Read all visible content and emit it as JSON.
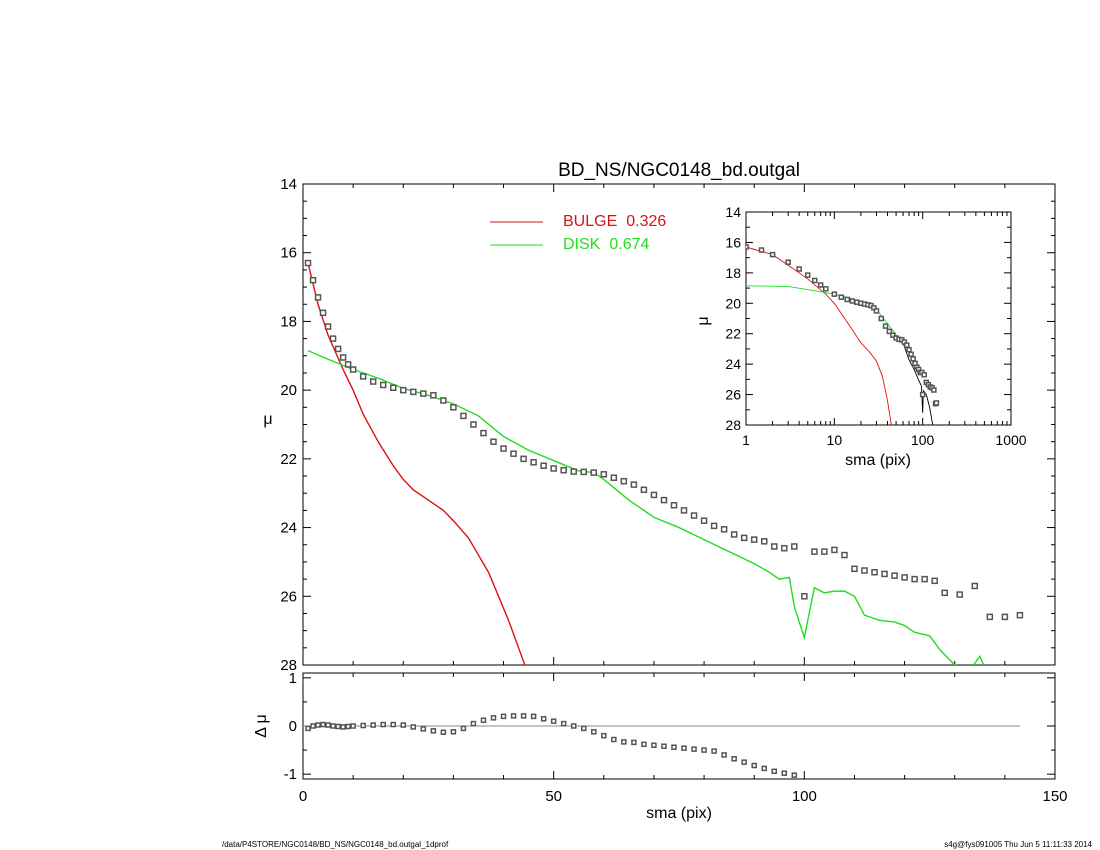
{
  "title": "BD_NS/NGC0148_bd.outgal",
  "footer": {
    "left": "/data/P4STORE/NGC0148/BD_NS/NGC0148_bd.outgal_1dprof",
    "right": "s4g@fys091005  Thu Jun  5 11:11:33 2014"
  },
  "colors": {
    "bulge": "#dd1111",
    "disk": "#11dd11",
    "data": "#555555",
    "axis": "#000000",
    "zero": "#888888"
  },
  "legend": [
    {
      "label": "BULGE",
      "value": "0.326",
      "color": "#dd1111"
    },
    {
      "label": "DISK",
      "value": "0.674",
      "color": "#22dd22"
    }
  ],
  "chart_data": [
    {
      "id": "main",
      "type": "line",
      "xlabel": "sma (pix)",
      "ylabel": "μ",
      "xlim": [
        0,
        150
      ],
      "ylim": [
        28,
        14
      ],
      "y_reversed": true,
      "xticks": [
        "0",
        "50",
        "100",
        "150"
      ],
      "yticks": [
        "14",
        "16",
        "18",
        "20",
        "22",
        "24",
        "26",
        "28"
      ],
      "series": [
        {
          "name": "BULGE",
          "style": "line",
          "color": "#dd1111",
          "x": [
            1,
            3,
            5,
            8,
            10,
            12,
            15,
            18,
            20,
            22,
            25,
            28,
            30,
            33,
            35,
            37,
            39,
            41,
            43,
            45
          ],
          "y": [
            16.3,
            17.5,
            18.4,
            19.4,
            20.0,
            20.7,
            21.5,
            22.2,
            22.6,
            22.9,
            23.2,
            23.5,
            23.8,
            24.3,
            24.8,
            25.3,
            26.0,
            26.7,
            27.5,
            28.3
          ]
        },
        {
          "name": "DISK",
          "style": "line",
          "color": "#22dd22",
          "x": [
            1,
            5,
            10,
            15,
            20,
            25,
            30,
            35,
            40,
            45,
            50,
            55,
            58,
            60,
            65,
            70,
            75,
            80,
            85,
            90,
            93,
            95,
            97,
            98,
            100,
            102,
            104,
            106,
            108,
            110,
            112,
            115,
            118,
            120,
            122,
            125,
            127,
            130,
            133,
            135,
            137,
            140,
            143
          ],
          "y": [
            18.85,
            19.1,
            19.4,
            19.65,
            19.95,
            20.15,
            20.4,
            20.75,
            21.35,
            21.75,
            22.05,
            22.35,
            22.4,
            22.6,
            23.2,
            23.7,
            24.0,
            24.35,
            24.7,
            25.05,
            25.3,
            25.5,
            25.45,
            26.3,
            27.2,
            25.75,
            25.9,
            25.85,
            25.85,
            26.0,
            26.55,
            26.7,
            26.75,
            26.85,
            27.05,
            27.15,
            27.55,
            28.0,
            28.15,
            27.75,
            28.4,
            28.6,
            28.8
          ]
        },
        {
          "name": "",
          "style": "markers",
          "color": "#555555",
          "x": [
            1,
            2,
            3,
            4,
            5,
            6,
            7,
            8,
            9,
            10,
            12,
            14,
            16,
            18,
            20,
            22,
            24,
            26,
            28,
            30,
            32,
            34,
            36,
            38,
            40,
            42,
            44,
            46,
            48,
            50,
            52,
            54,
            56,
            58,
            60,
            62,
            64,
            66,
            68,
            70,
            72,
            74,
            76,
            78,
            80,
            82,
            84,
            86,
            88,
            90,
            92,
            94,
            96,
            98,
            100,
            102,
            104,
            106,
            108,
            110,
            112,
            114,
            116,
            118,
            120,
            122,
            124,
            126,
            128,
            131,
            134,
            137,
            140,
            143
          ],
          "y": [
            16.3,
            16.8,
            17.3,
            17.75,
            18.15,
            18.5,
            18.8,
            19.05,
            19.25,
            19.4,
            19.6,
            19.75,
            19.85,
            19.93,
            20.0,
            20.05,
            20.1,
            20.15,
            20.3,
            20.5,
            20.75,
            21.0,
            21.25,
            21.5,
            21.7,
            21.85,
            22.0,
            22.1,
            22.2,
            22.28,
            22.33,
            22.37,
            22.38,
            22.4,
            22.45,
            22.55,
            22.65,
            22.75,
            22.9,
            23.05,
            23.2,
            23.35,
            23.5,
            23.65,
            23.8,
            23.95,
            24.05,
            24.2,
            24.3,
            24.35,
            24.4,
            24.55,
            24.6,
            24.55,
            26.0,
            24.7,
            24.7,
            24.65,
            24.8,
            25.2,
            25.25,
            25.3,
            25.35,
            25.4,
            25.45,
            25.5,
            25.5,
            25.55,
            25.9,
            25.95,
            25.7,
            26.6,
            26.6,
            26.55
          ]
        }
      ]
    },
    {
      "id": "residual",
      "type": "scatter",
      "xlabel": "sma (pix)",
      "ylabel": "Δ μ",
      "xlim": [
        0,
        150
      ],
      "ylim": [
        -1.1,
        1.1
      ],
      "xticks": [
        "0",
        "50",
        "100",
        "150"
      ],
      "yticks": [
        "1",
        "0",
        "-1"
      ],
      "zero_line": [
        0,
        143
      ],
      "series": [
        {
          "name": "",
          "style": "markers",
          "color": "#555555",
          "x": [
            1,
            2,
            3,
            4,
            5,
            6,
            7,
            8,
            9,
            10,
            12,
            14,
            16,
            18,
            20,
            22,
            24,
            26,
            28,
            30,
            32,
            34,
            36,
            38,
            40,
            42,
            44,
            46,
            48,
            50,
            52,
            54,
            56,
            58,
            60,
            62,
            64,
            66,
            68,
            70,
            72,
            74,
            76,
            78,
            80,
            82,
            84,
            86,
            88,
            90,
            92,
            94,
            96,
            98
          ],
          "y": [
            -0.05,
            0.0,
            0.02,
            0.03,
            0.02,
            0.0,
            -0.01,
            -0.02,
            -0.01,
            0.0,
            0.01,
            0.02,
            0.03,
            0.03,
            0.02,
            -0.02,
            -0.06,
            -0.1,
            -0.13,
            -0.12,
            -0.05,
            0.05,
            0.12,
            0.17,
            0.2,
            0.21,
            0.21,
            0.2,
            0.15,
            0.1,
            0.05,
            0.0,
            -0.05,
            -0.12,
            -0.2,
            -0.28,
            -0.33,
            -0.34,
            -0.38,
            -0.4,
            -0.42,
            -0.44,
            -0.46,
            -0.48,
            -0.5,
            -0.52,
            -0.6,
            -0.68,
            -0.75,
            -0.82,
            -0.88,
            -0.94,
            -0.98,
            -1.02
          ]
        }
      ]
    },
    {
      "id": "inset",
      "type": "line",
      "xlabel": "sma (pix)",
      "ylabel": "μ",
      "xscale": "log",
      "xlim": [
        1,
        1000
      ],
      "ylim": [
        28,
        14
      ],
      "y_reversed": true,
      "xticks": [
        "1",
        "10",
        "100",
        "1000"
      ],
      "yticks": [
        "14",
        "16",
        "18",
        "20",
        "22",
        "24",
        "26",
        "28"
      ],
      "series": [
        {
          "name": "BULGE",
          "style": "line",
          "color": "#dd1111",
          "x": [
            1,
            2,
            3,
            5,
            8,
            10,
            15,
            20,
            25,
            30,
            35,
            40,
            45
          ],
          "y": [
            16.3,
            16.8,
            17.5,
            18.4,
            19.4,
            20.0,
            21.5,
            22.6,
            23.2,
            23.8,
            24.8,
            26.4,
            28.3
          ]
        },
        {
          "name": "DISK",
          "style": "line",
          "color": "#22dd22",
          "x": [
            1,
            3,
            5,
            10,
            15,
            20,
            25,
            30,
            40,
            50
          ],
          "y": [
            18.85,
            18.9,
            19.1,
            19.4,
            19.65,
            19.95,
            20.15,
            20.4,
            21.35,
            22.05
          ]
        },
        {
          "name": "",
          "style": "line",
          "color": "#000000",
          "x": [
            60,
            70,
            80,
            90,
            97,
            100,
            102,
            110,
            120,
            130,
            143
          ],
          "y": [
            22.6,
            23.7,
            24.35,
            25.05,
            25.45,
            27.2,
            25.75,
            26.0,
            26.85,
            28.0,
            28.8
          ]
        },
        {
          "name": "",
          "style": "markers",
          "color": "#555555",
          "x": [
            1,
            1.5,
            2,
            3,
            4,
            5,
            6,
            7,
            8,
            10,
            12,
            14,
            16,
            18,
            20,
            22,
            24,
            26,
            28,
            30,
            34,
            38,
            42,
            46,
            50,
            54,
            58,
            62,
            66,
            70,
            74,
            78,
            82,
            86,
            90,
            94,
            98,
            100,
            104,
            110,
            116,
            122,
            128,
            134,
            140,
            143
          ],
          "y": [
            16.3,
            16.5,
            16.8,
            17.3,
            17.75,
            18.15,
            18.5,
            18.8,
            19.05,
            19.4,
            19.6,
            19.75,
            19.85,
            19.93,
            20.0,
            20.05,
            20.1,
            20.15,
            20.3,
            20.5,
            21.0,
            21.5,
            21.85,
            22.1,
            22.28,
            22.37,
            22.4,
            22.55,
            22.75,
            23.05,
            23.35,
            23.65,
            23.95,
            24.2,
            24.35,
            24.55,
            24.55,
            26.0,
            24.7,
            25.2,
            25.35,
            25.5,
            25.55,
            25.7,
            26.6,
            26.55
          ]
        }
      ]
    }
  ]
}
